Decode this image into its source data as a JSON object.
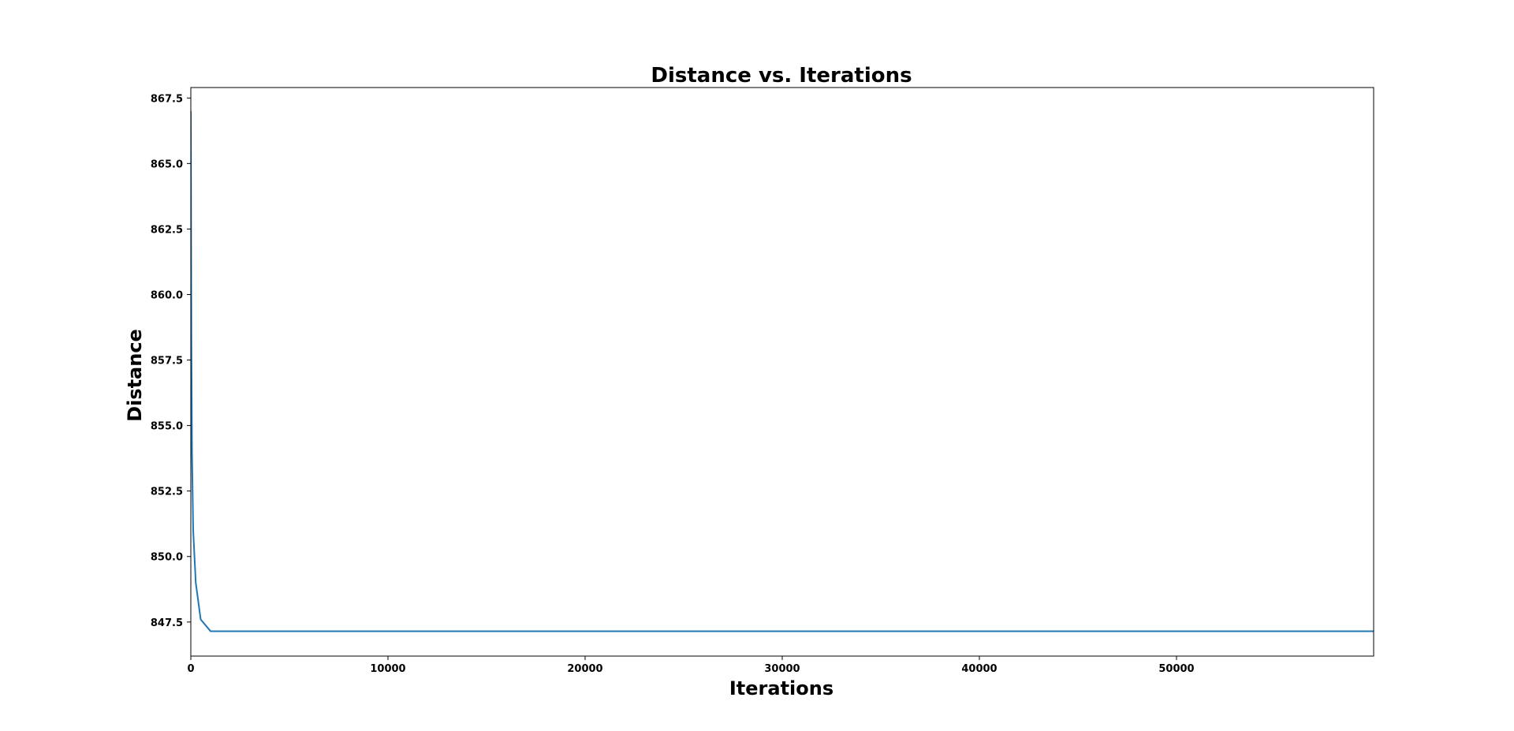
{
  "chart_data": {
    "type": "line",
    "title": "Distance vs. Iterations",
    "xlabel": "Iterations",
    "ylabel": "Distance",
    "xlim": [
      0,
      60000
    ],
    "ylim": [
      846.2,
      867.9
    ],
    "xticks": [
      0,
      10000,
      20000,
      30000,
      40000,
      50000
    ],
    "xtick_labels": [
      "0",
      "10000",
      "20000",
      "30000",
      "40000",
      "50000"
    ],
    "yticks": [
      847.5,
      850.0,
      852.5,
      855.0,
      857.5,
      860.0,
      862.5,
      865.0,
      867.5
    ],
    "ytick_labels": [
      "847.5",
      "850.0",
      "852.5",
      "855.0",
      "857.5",
      "860.0",
      "862.5",
      "865.0",
      "867.5"
    ],
    "grid": false,
    "series": [
      {
        "color": "#1f77b4",
        "x": [
          0,
          5,
          15,
          30,
          60,
          120,
          250,
          500,
          1000,
          5000,
          20000,
          40000,
          60000
        ],
        "y": [
          867.0,
          865.5,
          862.0,
          858.0,
          854.0,
          851.0,
          849.0,
          847.6,
          847.15,
          847.15,
          847.15,
          847.15,
          847.15
        ]
      }
    ]
  }
}
